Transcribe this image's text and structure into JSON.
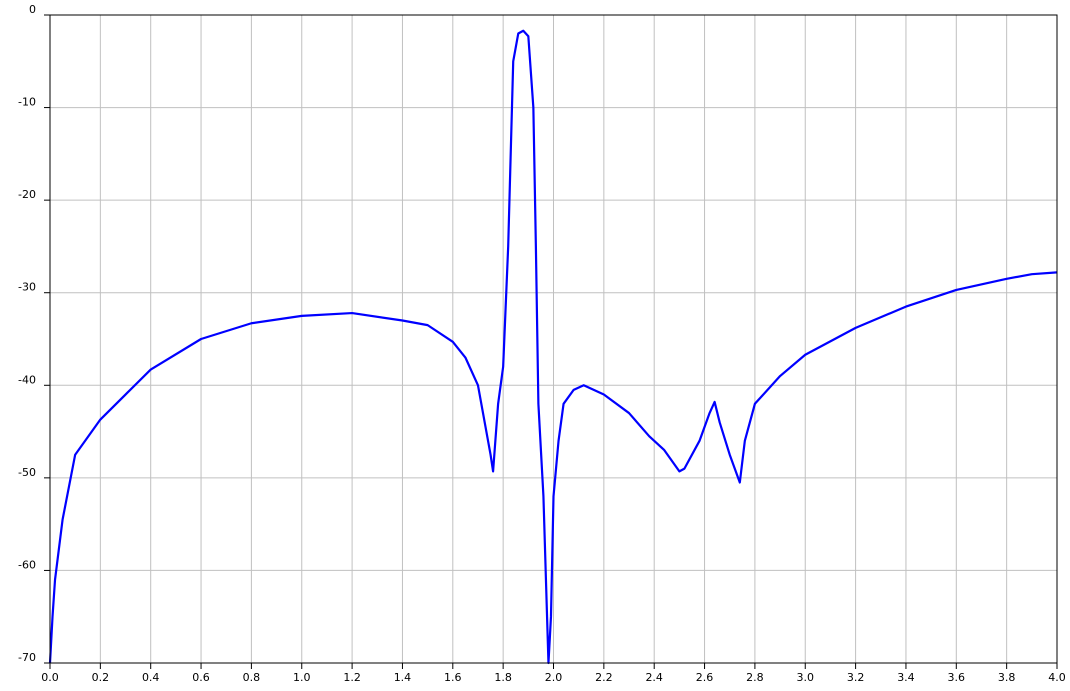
{
  "chart_data": {
    "type": "line",
    "color": "#0000ff",
    "grid": true,
    "x": [
      0,
      0.01,
      0.02,
      0.05,
      0.1,
      0.2,
      0.3,
      0.4,
      0.6,
      0.8,
      1.0,
      1.2,
      1.4,
      1.5,
      1.6,
      1.65,
      1.7,
      1.75,
      1.76,
      1.78,
      1.8,
      1.82,
      1.84,
      1.86,
      1.88,
      1.9,
      1.92,
      1.93,
      1.94,
      1.96,
      1.98,
      1.99,
      2.0,
      2.02,
      2.04,
      2.08,
      2.12,
      2.2,
      2.3,
      2.38,
      2.44,
      2.5,
      2.52,
      2.58,
      2.62,
      2.64,
      2.66,
      2.7,
      2.74,
      2.76,
      2.8,
      2.9,
      3.0,
      3.2,
      3.4,
      3.6,
      3.8,
      3.9,
      4.0
    ],
    "values": [
      -70,
      -65,
      -61,
      -54.5,
      -47.5,
      -43.7,
      -41,
      -38.3,
      -35,
      -33.3,
      -32.5,
      -32.2,
      -33,
      -33.5,
      -35.3,
      -37,
      -40,
      -47.5,
      -49.3,
      -42,
      -38,
      -25,
      -5,
      -2,
      -1.7,
      -2.3,
      -10,
      -25,
      -42,
      -52,
      -70,
      -65,
      -52,
      -46,
      -42,
      -40.5,
      -40,
      -41,
      -43,
      -45.5,
      -47,
      -49.3,
      -49,
      -46,
      -43,
      -41.8,
      -44,
      -47.5,
      -50.5,
      -46,
      -42,
      -39,
      -36.7,
      -33.8,
      -31.5,
      -29.7,
      -28.5,
      -28,
      -27.8
    ],
    "xlim": [
      0,
      4
    ],
    "xticks": [
      {
        "value": 0,
        "label": "0.0"
      },
      0.2,
      0.4,
      0.6,
      0.8,
      {
        "value": 1,
        "label": "1.0"
      },
      1.2,
      1.4,
      1.6,
      1.8,
      {
        "value": 2,
        "label": "2.0"
      },
      2.2,
      2.4,
      2.6,
      2.8,
      {
        "value": 3,
        "label": "3.0"
      },
      3.2,
      3.4,
      3.6,
      3.8,
      {
        "value": 4,
        "label": "4.0"
      }
    ],
    "ylim": [
      -70,
      0
    ],
    "yticks": [
      0,
      -10,
      -20,
      -30,
      -40,
      -50,
      -60,
      -70
    ]
  }
}
